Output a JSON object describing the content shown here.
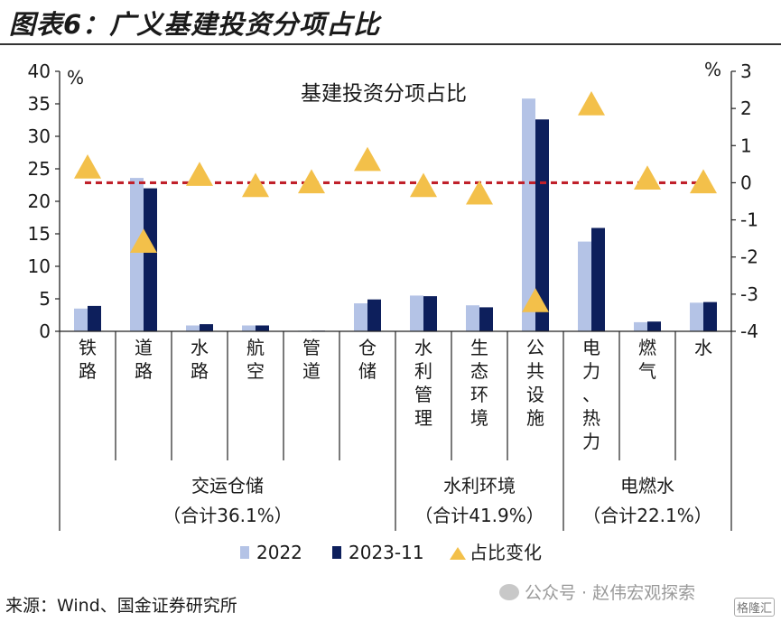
{
  "page": {
    "title": "图表6：广义基建投资分项占比",
    "source": "来源：Wind、国金证券研究所",
    "watermark": "公众号 · 赵伟宏观探索",
    "watermark_logo": "格隆汇"
  },
  "chart_data": {
    "type": "bar",
    "title": "基建投资分项占比",
    "categories": [
      "铁路",
      "道路",
      "水路",
      "航空",
      "管道",
      "仓储",
      "水利管理",
      "生态环境",
      "公共设施",
      "电力、热力",
      "燃气",
      "水"
    ],
    "series": [
      {
        "name": "2022",
        "axis": "left",
        "color": "#b4c3e6",
        "values": [
          3.5,
          23.6,
          0.9,
          0.9,
          0.1,
          4.3,
          5.5,
          4.0,
          35.8,
          13.8,
          1.4,
          4.4
        ]
      },
      {
        "name": "2023-11",
        "axis": "left",
        "color": "#0d1f5c",
        "values": [
          3.9,
          22.0,
          1.1,
          0.9,
          0.1,
          4.9,
          5.4,
          3.7,
          32.6,
          15.9,
          1.5,
          4.5
        ]
      },
      {
        "name": "占比变化",
        "axis": "right",
        "type": "scatter",
        "marker": "triangle",
        "color": "#f3c04a",
        "values": [
          0.4,
          -1.6,
          0.2,
          -0.1,
          0.0,
          0.6,
          -0.1,
          -0.3,
          -3.2,
          2.1,
          0.1,
          0.0
        ]
      }
    ],
    "y_left": {
      "label": "%",
      "lim": [
        0,
        40
      ],
      "ticks": [
        0,
        5,
        10,
        15,
        20,
        25,
        30,
        35,
        40
      ],
      "tick_labels": [
        "0",
        "5",
        "10",
        "15",
        "20",
        "25",
        "30",
        "35",
        "40"
      ]
    },
    "y_right": {
      "label": "%",
      "lim": [
        -4,
        3
      ],
      "ticks": [
        -4,
        -3,
        -2,
        -1,
        0,
        1,
        2,
        3
      ],
      "tick_labels": [
        "-4",
        "-3",
        "-2",
        "-1",
        "0",
        "1",
        "2",
        "3"
      ]
    },
    "reference_line": {
      "axis": "right",
      "value": 0,
      "style": "dashed",
      "color": "#c0202a"
    },
    "groups": [
      {
        "name": "交运仓储",
        "sub": "（合计36.1%）",
        "start": 0,
        "end": 5
      },
      {
        "name": "水利环境",
        "sub": "（合计41.9%）",
        "start": 6,
        "end": 8
      },
      {
        "name": "电燃水",
        "sub": "（合计22.1%）",
        "start": 9,
        "end": 11
      }
    ],
    "legend": {
      "position": "bottom",
      "entries": [
        "2022",
        "2023-11",
        "占比变化"
      ]
    },
    "grid": false
  }
}
